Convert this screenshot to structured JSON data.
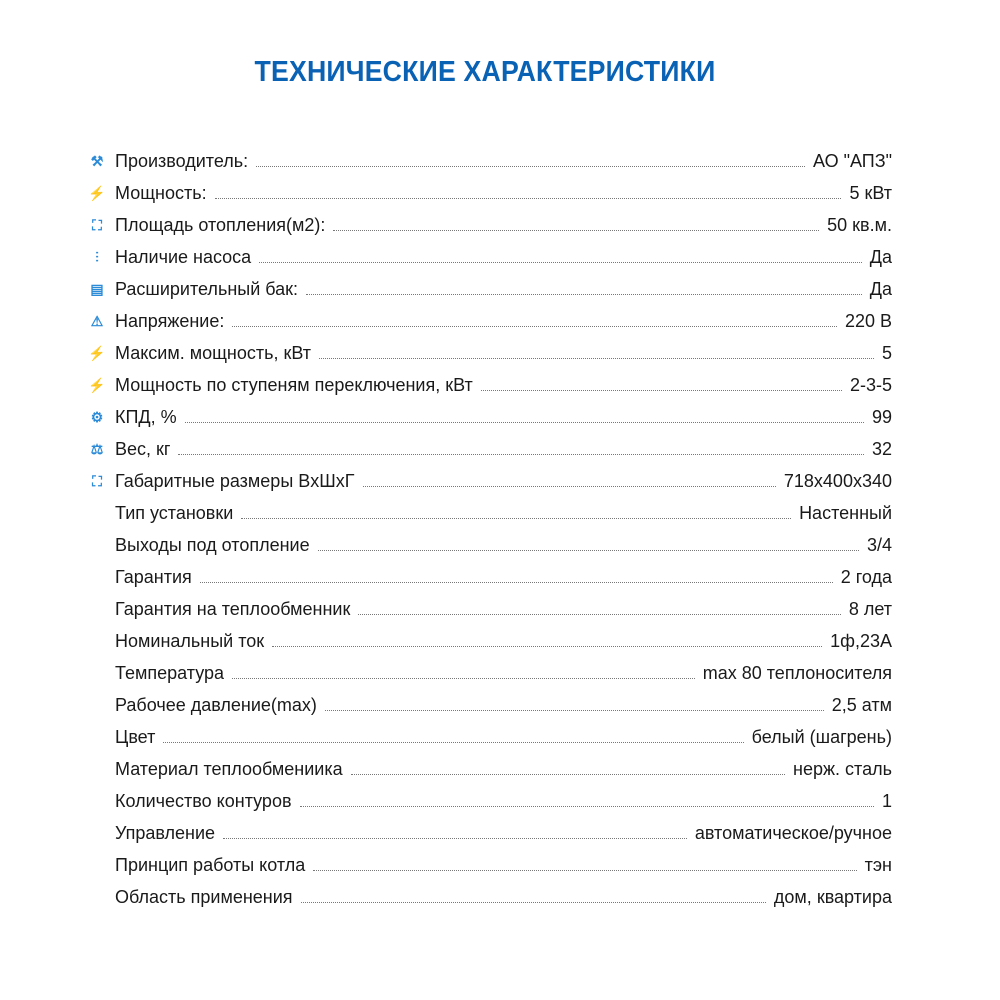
{
  "title": "ТЕХНИЧЕСКИЕ ХАРАКТЕРИСТИКИ",
  "colors": {
    "title": "#0a62b5",
    "icon": "#2b8bd8"
  },
  "specs": [
    {
      "icon": "factory-icon",
      "glyph": "⚒",
      "label": "Производитель:",
      "value": "АО \"АПЗ\""
    },
    {
      "icon": "lightning-icon",
      "glyph": "⚡",
      "label": "Мощность:",
      "value": "5 кВт"
    },
    {
      "icon": "expand-icon",
      "glyph": "⛶",
      "label": "Площадь отопления(м2):",
      "value": "50 кв.м."
    },
    {
      "icon": "pump-icon",
      "glyph": "⫶",
      "label": "Наличие насоса",
      "value": "Да"
    },
    {
      "icon": "tank-icon",
      "glyph": "▤",
      "label": "Расширительный бак:",
      "value": "Да"
    },
    {
      "icon": "voltage-warning-icon",
      "glyph": "⚠",
      "label": "Напряжение:",
      "value": "220 В"
    },
    {
      "icon": "lightning-icon",
      "glyph": "⚡",
      "label": "Максим. мощность, кВт",
      "value": "5"
    },
    {
      "icon": "lightning-icon",
      "glyph": "⚡",
      "label": "Мощность по ступеням переключения, кВт",
      "value": "2-3-5"
    },
    {
      "icon": "gear-icon",
      "glyph": "⚙",
      "label": "КПД, %",
      "value": "99"
    },
    {
      "icon": "scales-icon",
      "glyph": "⚖",
      "label": "Вес, кг",
      "value": "32"
    },
    {
      "icon": "expand-icon",
      "glyph": "⛶",
      "label": "Габаритные размеры ВxШxГ",
      "value": "718x400x340"
    },
    {
      "icon": "",
      "glyph": "",
      "label": "Тип установки",
      "value": "Настенный"
    },
    {
      "icon": "",
      "glyph": "",
      "label": "Выходы под отопление",
      "value": "3/4"
    },
    {
      "icon": "",
      "glyph": "",
      "label": "Гарантия",
      "value": "2 года"
    },
    {
      "icon": "",
      "glyph": "",
      "label": "Гарантия на теплообменник",
      "value": "8 лет"
    },
    {
      "icon": "",
      "glyph": "",
      "label": "Номинальный ток",
      "value": "1ф,23А"
    },
    {
      "icon": "",
      "glyph": "",
      "label": "Температура",
      "value": "max 80 теплоносителя"
    },
    {
      "icon": "",
      "glyph": "",
      "label": "Рабочее давление(max)",
      "value": "2,5 атм"
    },
    {
      "icon": "",
      "glyph": "",
      "label": "Цвет",
      "value": "белый (шагрень)"
    },
    {
      "icon": "",
      "glyph": "",
      "label": "Материал теплообмениика",
      "value": "нерж. сталь"
    },
    {
      "icon": "",
      "glyph": "",
      "label": "Количество контуров",
      "value": "1"
    },
    {
      "icon": "",
      "glyph": "",
      "label": "Управление",
      "value": "автоматическое/ручное"
    },
    {
      "icon": "",
      "glyph": "",
      "label": "Принцип работы котла",
      "value": "тэн"
    },
    {
      "icon": "",
      "glyph": "",
      "label": "Область применения",
      "value": "дом, квартира"
    }
  ]
}
